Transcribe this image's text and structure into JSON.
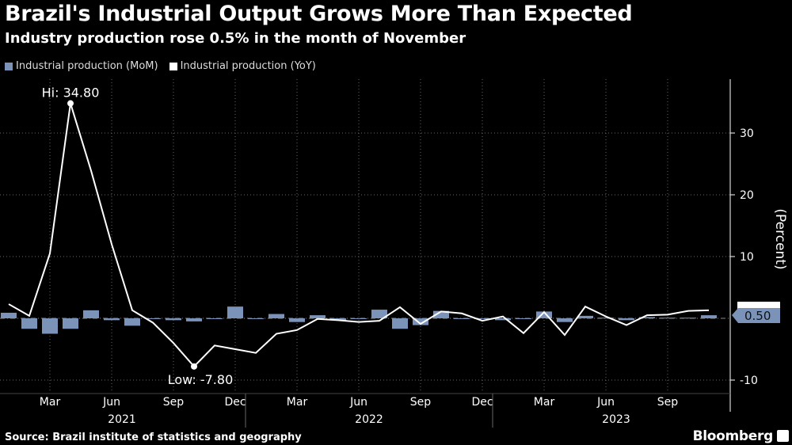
{
  "title": "Brazil's Industrial Output Grows More Than Expected",
  "subtitle": "Industry production rose 0.5% in the month of November",
  "source": "Source: Brazil institute of statistics and geography",
  "brand": "Bloomberg",
  "colors": {
    "background": "#000000",
    "mom": "#7b93b8",
    "yoy": "#ffffff"
  },
  "chart_data": {
    "type": "bar+line",
    "x": [
      "2021-01",
      "2021-02",
      "2021-03",
      "2021-04",
      "2021-05",
      "2021-06",
      "2021-07",
      "2021-08",
      "2021-09",
      "2021-10",
      "2021-11",
      "2021-12",
      "2022-01",
      "2022-02",
      "2022-03",
      "2022-04",
      "2022-05",
      "2022-06",
      "2022-07",
      "2022-08",
      "2022-09",
      "2022-10",
      "2022-11",
      "2022-12",
      "2023-01",
      "2023-02",
      "2023-03",
      "2023-04",
      "2023-05",
      "2023-06",
      "2023-07",
      "2023-08",
      "2023-09",
      "2023-10",
      "2023-11"
    ],
    "series": [
      {
        "name": "Industrial production (MoM)",
        "type": "bar",
        "values": [
          0.9,
          -1.7,
          -2.5,
          -1.7,
          1.3,
          -0.3,
          -1.2,
          -0.1,
          -0.3,
          -0.5,
          0.0,
          1.9,
          -0.1,
          0.7,
          -0.6,
          0.5,
          -0.3,
          -0.1,
          1.4,
          -1.7,
          -1.1,
          1.2,
          0.0,
          -0.1,
          -0.3,
          -0.1,
          1.1,
          -0.6,
          0.4,
          0.1,
          -0.3,
          0.2,
          0.1,
          0.1,
          0.5
        ]
      },
      {
        "name": "Industrial production (YoY)",
        "type": "line",
        "values": [
          2.3,
          0.4,
          10.5,
          34.8,
          23.9,
          12.0,
          1.3,
          -0.7,
          -4.0,
          -7.8,
          -4.4,
          -5.0,
          -5.6,
          -2.5,
          -1.9,
          -0.1,
          -0.3,
          -0.6,
          -0.4,
          1.8,
          -0.9,
          1.1,
          0.8,
          -0.4,
          0.3,
          -2.4,
          1.0,
          -2.7,
          1.9,
          0.3,
          -1.1,
          0.5,
          0.6,
          1.2,
          1.3
        ]
      }
    ],
    "annotations": {
      "hi": "Hi: 34.80",
      "low": "Low: -7.80",
      "last_mom": "0.50"
    },
    "ylabel": "(Percent)",
    "ylim": [
      -12,
      39
    ],
    "yticks": [
      "30",
      "20",
      "10",
      "-10"
    ],
    "xtick_labels": [
      "Mar",
      "Jun",
      "Sep",
      "Dec",
      "Mar",
      "Jun",
      "Sep",
      "Dec",
      "Mar",
      "Jun",
      "Sep"
    ],
    "year_labels": [
      "2021",
      "2022",
      "2023"
    ],
    "legend": "top-left",
    "grid": true
  }
}
